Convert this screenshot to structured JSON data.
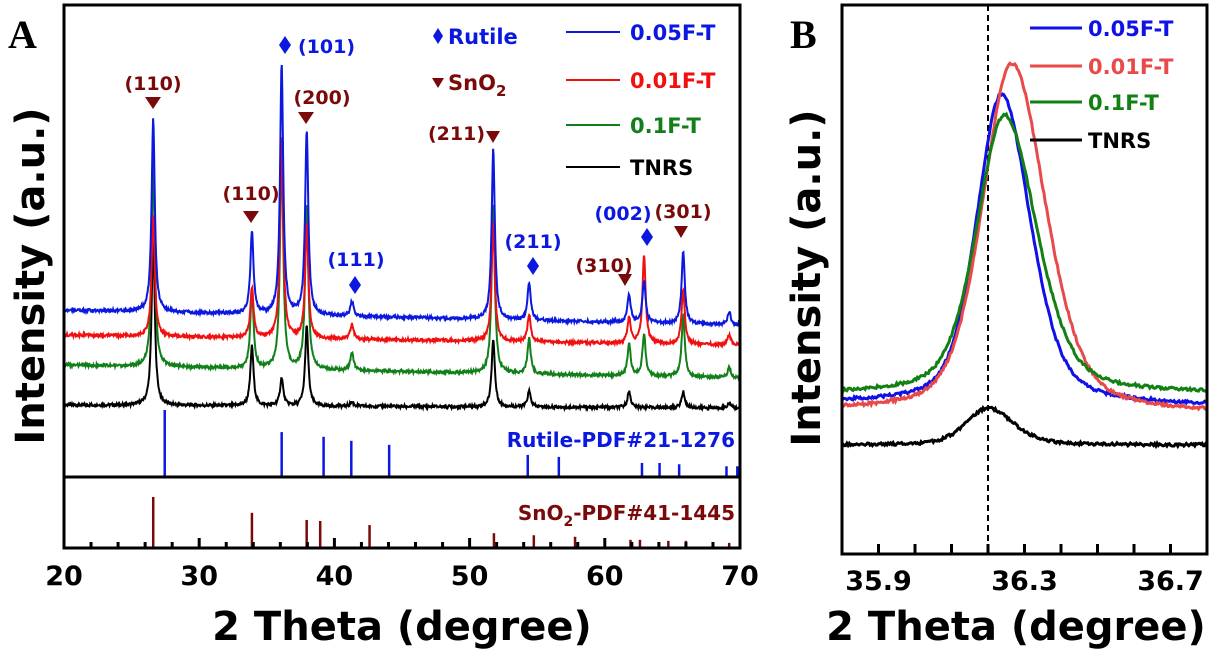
{
  "chart_data": [
    {
      "type": "line",
      "panel_label": "A",
      "xlabel": "2 Theta (degree)",
      "ylabel": "Intensity (a.u.)",
      "xlim": [
        20,
        70
      ],
      "xticks": [
        "20",
        "30",
        "40",
        "50",
        "60",
        "70"
      ],
      "legend_position": "top-right",
      "series": [
        {
          "name": "0.05F-T",
          "color": "#0a18e0",
          "baseline": [
            167,
            152
          ],
          "peaks": [
            [
              26.6,
              193
            ],
            [
              33.9,
              82
            ],
            [
              36.1,
              250
            ],
            [
              37.95,
              185
            ],
            [
              41.3,
              15
            ],
            [
              51.75,
              170
            ],
            [
              54.4,
              37
            ],
            [
              61.8,
              28
            ],
            [
              62.9,
              42
            ],
            [
              65.8,
              72
            ],
            [
              69.2,
              13
            ]
          ]
        },
        {
          "name": "0.01F-T",
          "color": "#f01010",
          "baseline": [
            142,
            132
          ],
          "peaks": [
            [
              26.6,
              120
            ],
            [
              33.9,
              50
            ],
            [
              36.1,
              200
            ],
            [
              37.95,
              115
            ],
            [
              41.3,
              15
            ],
            [
              51.75,
              120
            ],
            [
              54.4,
              27
            ],
            [
              61.8,
              25
            ],
            [
              62.9,
              88
            ],
            [
              65.8,
              55
            ],
            [
              69.2,
              10
            ]
          ]
        },
        {
          "name": "0.1F-T",
          "color": "#12801a",
          "baseline": [
            112,
            99
          ],
          "peaks": [
            [
              26.6,
              205
            ],
            [
              33.9,
              80
            ],
            [
              36.1,
              218
            ],
            [
              37.95,
              165
            ],
            [
              41.3,
              18
            ],
            [
              51.75,
              168
            ],
            [
              54.4,
              35
            ],
            [
              61.8,
              32
            ],
            [
              62.9,
              42
            ],
            [
              65.8,
              62
            ],
            [
              69.2,
              10
            ]
          ]
        },
        {
          "name": "TNRS",
          "color": "#000000",
          "baseline": [
            72,
            69
          ],
          "peaks": [
            [
              26.6,
              170
            ],
            [
              33.9,
              60
            ],
            [
              36.1,
              28
            ],
            [
              37.95,
              80
            ],
            [
              41.3,
              4
            ],
            [
              51.75,
              68
            ],
            [
              54.4,
              16
            ],
            [
              61.8,
              16
            ],
            [
              65.8,
              16
            ],
            [
              69.2,
              5
            ]
          ]
        }
      ],
      "annotations": [
        {
          "text": "(110)",
          "phase": "SnO2",
          "two_theta": 26.6
        },
        {
          "text": "(110)",
          "phase": "SnO2",
          "two_theta": 33.9
        },
        {
          "text": "(101)",
          "phase": "Rutile",
          "two_theta": 36.1
        },
        {
          "text": "(200)",
          "phase": "SnO2",
          "two_theta": 37.95
        },
        {
          "text": "(111)",
          "phase": "Rutile",
          "two_theta": 41.3
        },
        {
          "text": "(211)",
          "phase": "SnO2",
          "two_theta": 51.75
        },
        {
          "text": "(211)",
          "phase": "Rutile",
          "two_theta": 54.4
        },
        {
          "text": "(310)",
          "phase": "SnO2",
          "two_theta": 61.8
        },
        {
          "text": "(002)",
          "phase": "Rutile",
          "two_theta": 62.9
        },
        {
          "text": "(301)",
          "phase": "SnO2",
          "two_theta": 65.8
        }
      ],
      "marker_legend": [
        {
          "symbol": "diamond",
          "label": "Rutile",
          "color": "#0a18e0"
        },
        {
          "symbol": "triangle-down",
          "label": "SnO",
          "subscript": "2",
          "color": "#7a0a0a"
        }
      ],
      "reference_patterns": [
        {
          "label": "Rutile-PDF#21-1276",
          "color": "#0a18e0",
          "sticks": [
            [
              27.45,
              100
            ],
            [
              36.1,
              67
            ],
            [
              39.2,
              60
            ],
            [
              41.25,
              54
            ],
            [
              44.05,
              48
            ],
            [
              54.3,
              33
            ],
            [
              56.6,
              30
            ],
            [
              62.75,
              21
            ],
            [
              64.05,
              21
            ],
            [
              65.5,
              19
            ],
            [
              69.0,
              16
            ],
            [
              69.8,
              16
            ]
          ]
        },
        {
          "label_main": "SnO",
          "label_sub": "2",
          "label_rest": "-PDF#41-1445",
          "color": "#7a0a0a",
          "sticks": [
            [
              26.6,
              100
            ],
            [
              33.9,
              69
            ],
            [
              37.95,
              55
            ],
            [
              38.95,
              53
            ],
            [
              42.6,
              45
            ],
            [
              51.8,
              29
            ],
            [
              54.75,
              25
            ],
            [
              57.8,
              22
            ],
            [
              61.9,
              16
            ],
            [
              62.6,
              16
            ],
            [
              64.7,
              14
            ],
            [
              66.0,
              14
            ],
            [
              69.2,
              10
            ]
          ]
        }
      ]
    },
    {
      "type": "line",
      "panel_label": "B",
      "xlabel": "2 Theta (degree)",
      "ylabel": "Intensity (a.u.)",
      "xlim": [
        35.8,
        36.8
      ],
      "xticks": [
        "35.9",
        "36.3",
        "36.7"
      ],
      "reference_line_x": 36.2,
      "legend_position": "top-right",
      "series": [
        {
          "name": "0.05F-T",
          "color": "#1010e8",
          "baseline": [
            151,
            148
          ],
          "peak": [
            36.237,
            310,
            0.17
          ]
        },
        {
          "name": "0.01F-T",
          "color": "#e84a4a",
          "baseline": [
            143,
            140
          ],
          "peak": [
            36.265,
            349,
            0.2
          ]
        },
        {
          "name": "0.1F-T",
          "color": "#128012",
          "baseline": [
            160,
            160
          ],
          "peak": [
            36.245,
            279,
            0.19
          ]
        },
        {
          "name": "TNRS",
          "color": "#000000",
          "baseline": [
            109,
            109
          ],
          "peak": [
            36.2,
            37,
            0.15
          ]
        }
      ]
    }
  ]
}
